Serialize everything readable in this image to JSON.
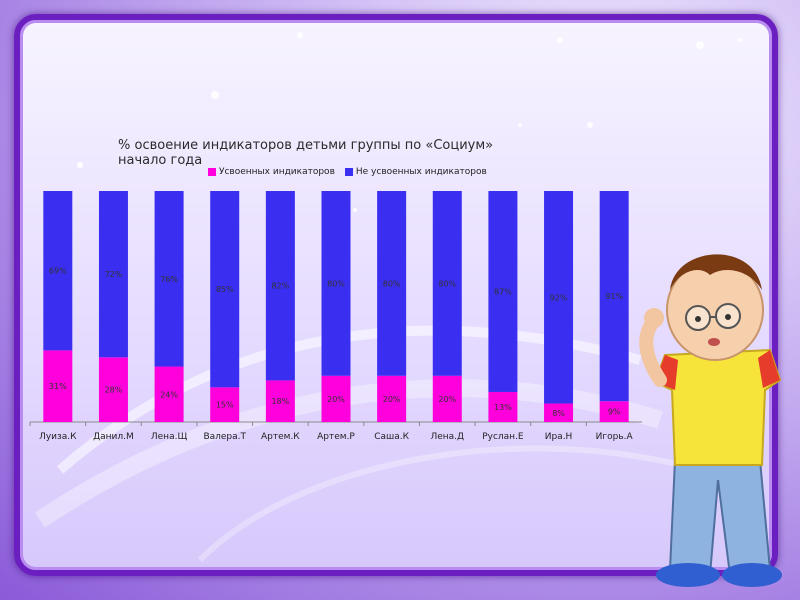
{
  "chart_data": {
    "type": "bar",
    "stacked": true,
    "title": "% освоение индикаторов  детьми группы по «Социум»",
    "subtitle": "начало года",
    "categories": [
      "Луиза.К",
      "Данил.М",
      "Лена.Щ",
      "Валера.Т",
      "Артем.К",
      "Артем.Р",
      "Саша.К",
      "Лена.Д",
      "Руслан.Е",
      "Ира.Н",
      "Игорь.А"
    ],
    "series": [
      {
        "name": "Усвоенных индикаторов",
        "color": "#ff00dd",
        "values": [
          31,
          28,
          24,
          15,
          18,
          20,
          20,
          20,
          13,
          8,
          9
        ]
      },
      {
        "name": "Не усвоенных индикаторов",
        "color": "#3a2ef0",
        "values": [
          69,
          72,
          76,
          85,
          82,
          80,
          80,
          80,
          87,
          92,
          91
        ]
      }
    ],
    "value_labels": {
      "mastered": [
        "31%",
        "28%",
        "24%",
        "15%",
        "18%",
        "20%",
        "20%",
        "20%",
        "13%",
        "8%",
        "9%"
      ],
      "not_mastered": [
        "69%",
        "72%",
        "76%",
        "85%",
        "82%",
        "80%",
        "80%",
        "80%",
        "87%",
        "92%",
        "91%"
      ]
    },
    "ylim": [
      0,
      100
    ],
    "legend_position": "top",
    "grid": false
  }
}
